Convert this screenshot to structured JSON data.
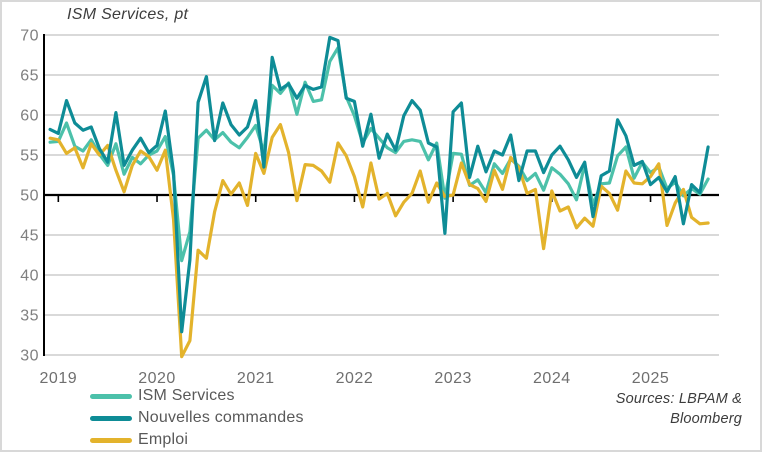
{
  "title": "ISM Services, pt",
  "sources": {
    "line1": "Sources: LBPAM &",
    "line2": "Bloomberg"
  },
  "legend": [
    {
      "label": "ISM Services",
      "color": "#4cc1aa"
    },
    {
      "label": "Nouvelles commandes",
      "color": "#0e8c96"
    },
    {
      "label": "Emploi",
      "color": "#e3b32c"
    }
  ],
  "chart_data": {
    "type": "line",
    "title": "ISM Services, pt",
    "frequency": "monthly",
    "x_start": "2018-12",
    "x_end": "2025-08",
    "ylim": [
      30,
      70
    ],
    "y_ticks": [
      30,
      35,
      40,
      45,
      50,
      55,
      60,
      65,
      70
    ],
    "x_tick_years": [
      2019,
      2020,
      2021,
      2022,
      2023,
      2024,
      2025
    ],
    "x_tick_labels": [
      "2019",
      "2020",
      "2021",
      "2022",
      "2023",
      "2024",
      "2025"
    ],
    "reference_line": 50,
    "grid": "horizontal",
    "legend_position": "bottom-left",
    "grid_color": "#d9d9d9",
    "axis_color": "#000000",
    "tick_label_color": "#6f6f6f",
    "series": [
      {
        "name": "ISM Services",
        "color": "#4cc1aa",
        "values": [
          56.6,
          56.7,
          59.0,
          56.1,
          55.5,
          56.9,
          55.1,
          53.7,
          56.4,
          52.6,
          54.7,
          53.9,
          55.0,
          55.5,
          57.3,
          52.5,
          41.8,
          45.4,
          57.1,
          58.1,
          56.9,
          57.8,
          56.6,
          55.9,
          57.2,
          58.7,
          55.3,
          63.7,
          62.7,
          64.0,
          60.1,
          64.1,
          61.7,
          61.9,
          66.7,
          68.4,
          62.3,
          59.9,
          56.5,
          58.3,
          57.1,
          55.9,
          55.3,
          56.7,
          56.9,
          56.7,
          54.4,
          56.5,
          49.6,
          55.2,
          55.1,
          51.2,
          51.9,
          50.3,
          53.9,
          52.7,
          54.5,
          53.6,
          51.8,
          52.7,
          50.6,
          53.4,
          52.6,
          51.4,
          49.4,
          53.8,
          48.8,
          51.4,
          51.5,
          54.9,
          56.0,
          52.1,
          54.1,
          52.8,
          53.5,
          50.8,
          51.6,
          49.9,
          50.8,
          50.1,
          52.0
        ]
      },
      {
        "name": "Nouvelles commandes",
        "color": "#0e8c96",
        "values": [
          58.2,
          57.7,
          61.8,
          59.0,
          58.1,
          58.5,
          55.8,
          54.1,
          60.3,
          53.7,
          55.6,
          57.1,
          55.3,
          56.2,
          60.5,
          52.9,
          32.9,
          41.9,
          61.6,
          64.8,
          56.8,
          61.5,
          58.8,
          57.5,
          58.5,
          61.8,
          53.5,
          67.2,
          63.2,
          63.9,
          62.1,
          63.7,
          63.2,
          63.5,
          69.7,
          69.3,
          62.1,
          61.7,
          56.1,
          60.1,
          54.6,
          57.6,
          55.6,
          59.9,
          61.8,
          60.6,
          56.5,
          56.0,
          45.2,
          60.4,
          61.5,
          52.2,
          56.1,
          52.9,
          55.5,
          55.0,
          57.5,
          51.8,
          55.5,
          55.5,
          52.8,
          55.0,
          56.1,
          54.4,
          52.2,
          54.1,
          47.3,
          52.4,
          53.0,
          59.4,
          57.4,
          53.7,
          54.2,
          51.3,
          52.2,
          50.4,
          52.3,
          46.4,
          51.3,
          50.3,
          56.0
        ]
      },
      {
        "name": "Emploi",
        "color": "#e3b32c",
        "values": [
          57.1,
          56.9,
          55.2,
          55.9,
          53.4,
          56.4,
          55.0,
          56.2,
          53.1,
          50.4,
          53.7,
          55.5,
          54.8,
          53.1,
          55.6,
          47.0,
          29.8,
          31.8,
          43.1,
          42.1,
          47.9,
          51.8,
          50.1,
          51.5,
          48.7,
          55.2,
          52.7,
          57.2,
          58.8,
          55.3,
          49.3,
          53.8,
          53.7,
          53.0,
          51.6,
          56.5,
          54.9,
          52.3,
          48.5,
          54.0,
          49.5,
          50.2,
          47.4,
          49.1,
          50.2,
          53.0,
          49.1,
          51.5,
          49.8,
          50.0,
          54.0,
          51.3,
          50.8,
          49.2,
          53.1,
          50.7,
          54.7,
          53.4,
          50.2,
          50.7,
          43.3,
          50.5,
          48.0,
          48.5,
          45.9,
          47.1,
          46.1,
          51.1,
          50.2,
          48.1,
          53.0,
          51.5,
          51.4,
          52.3,
          53.9,
          46.2,
          49.0,
          50.7,
          47.2,
          46.4,
          46.5
        ]
      }
    ]
  }
}
